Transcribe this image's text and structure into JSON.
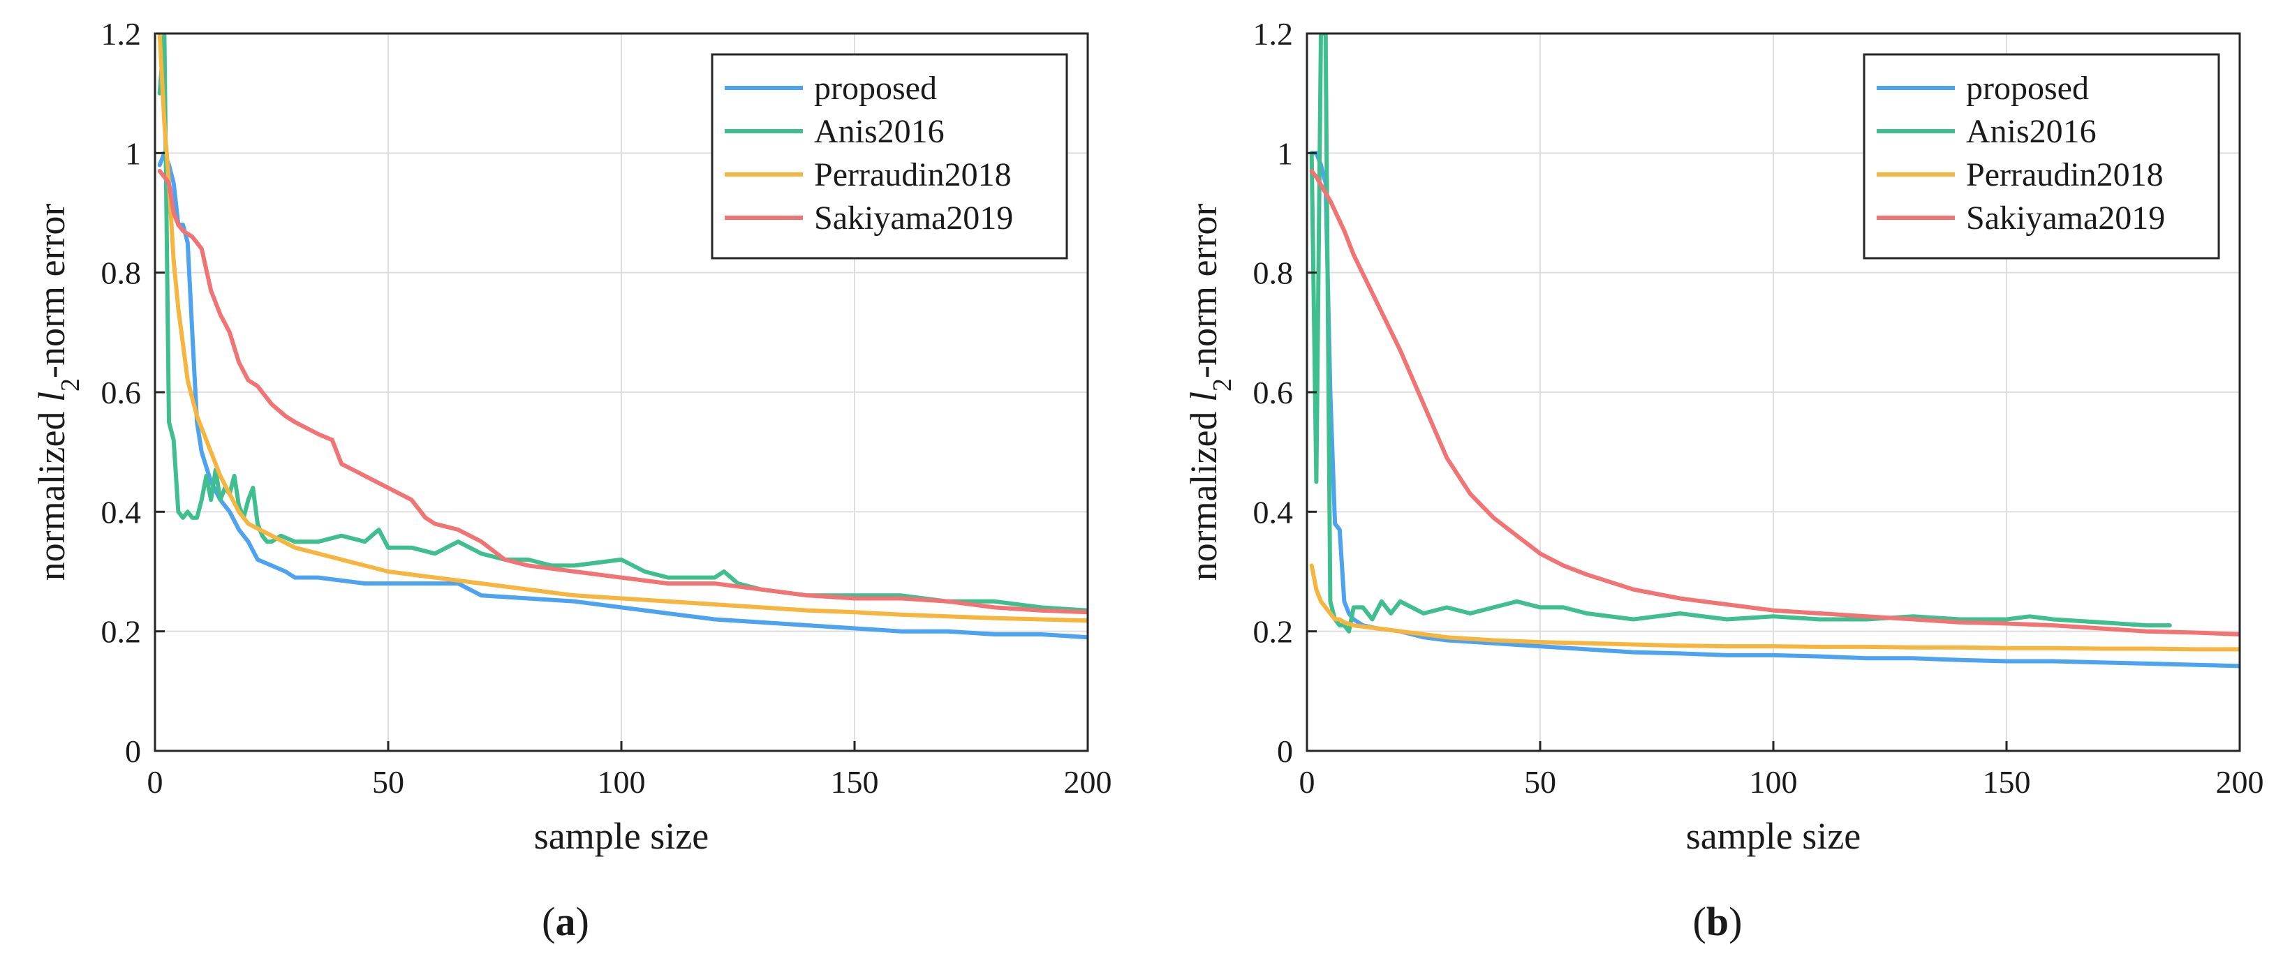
{
  "figure": {
    "colors": {
      "proposed": "#4da3f0",
      "Anis2016": "#3fbf8f",
      "Perraudin2018": "#f5b53f",
      "Sakiyama2019": "#f27373"
    }
  },
  "chart_data": [
    {
      "type": "line",
      "panel": "(a)",
      "panel_letter": "a",
      "xlabel": "sample size",
      "ylabel_prefix": "normalized ",
      "ylabel_var": "l",
      "ylabel_sub": "2",
      "ylabel_suffix": "-norm error",
      "xlim": [
        0,
        200
      ],
      "ylim": [
        0,
        1.2
      ],
      "xticks": [
        0,
        50,
        100,
        150,
        200
      ],
      "yticks": [
        0,
        0.2,
        0.4,
        0.6,
        0.8,
        1,
        1.2
      ],
      "ytick_labels": [
        "0",
        "0.2",
        "0.4",
        "0.6",
        "0.8",
        "1",
        "1.2"
      ],
      "grid": true,
      "legend_position": "top-right",
      "series": [
        {
          "name": "proposed",
          "x": [
            1,
            2,
            3,
            4,
            5,
            6,
            7,
            8,
            9,
            10,
            12,
            14,
            16,
            18,
            20,
            22,
            25,
            28,
            30,
            35,
            40,
            45,
            50,
            55,
            60,
            65,
            70,
            80,
            90,
            100,
            110,
            120,
            130,
            140,
            150,
            160,
            170,
            180,
            190,
            200
          ],
          "y": [
            0.98,
            1.0,
            0.98,
            0.95,
            0.88,
            0.88,
            0.85,
            0.7,
            0.55,
            0.5,
            0.45,
            0.42,
            0.4,
            0.37,
            0.35,
            0.32,
            0.31,
            0.3,
            0.29,
            0.29,
            0.285,
            0.28,
            0.28,
            0.28,
            0.28,
            0.28,
            0.26,
            0.255,
            0.25,
            0.24,
            0.23,
            0.22,
            0.215,
            0.21,
            0.205,
            0.2,
            0.2,
            0.195,
            0.195,
            0.19
          ]
        },
        {
          "name": "Anis2016",
          "x": [
            1,
            2,
            3,
            4,
            5,
            6,
            7,
            8,
            9,
            10,
            11,
            12,
            13,
            14,
            15,
            16,
            17,
            18,
            19,
            20,
            21,
            22,
            23,
            24,
            25,
            27,
            30,
            35,
            40,
            45,
            48,
            50,
            55,
            60,
            65,
            70,
            75,
            80,
            85,
            90,
            95,
            100,
            105,
            110,
            115,
            120,
            122,
            125,
            130,
            140,
            150,
            160,
            170,
            180,
            190,
            200
          ],
          "y": [
            1.1,
            1.2,
            0.55,
            0.52,
            0.4,
            0.39,
            0.4,
            0.39,
            0.39,
            0.42,
            0.46,
            0.42,
            0.47,
            0.42,
            0.44,
            0.43,
            0.46,
            0.41,
            0.39,
            0.42,
            0.44,
            0.38,
            0.36,
            0.35,
            0.35,
            0.36,
            0.35,
            0.35,
            0.36,
            0.35,
            0.37,
            0.34,
            0.34,
            0.33,
            0.35,
            0.33,
            0.32,
            0.32,
            0.31,
            0.31,
            0.315,
            0.32,
            0.3,
            0.29,
            0.29,
            0.29,
            0.3,
            0.28,
            0.27,
            0.26,
            0.26,
            0.26,
            0.25,
            0.25,
            0.24,
            0.235
          ]
        },
        {
          "name": "Perraudin2018",
          "x": [
            1,
            2,
            3,
            4,
            5,
            6,
            7,
            8,
            9,
            10,
            12,
            14,
            16,
            18,
            20,
            25,
            30,
            40,
            50,
            60,
            70,
            80,
            90,
            100,
            110,
            120,
            130,
            140,
            150,
            160,
            170,
            180,
            190,
            200
          ],
          "y": [
            1.2,
            1.05,
            0.95,
            0.82,
            0.74,
            0.68,
            0.62,
            0.59,
            0.56,
            0.54,
            0.5,
            0.46,
            0.43,
            0.4,
            0.38,
            0.36,
            0.34,
            0.32,
            0.3,
            0.29,
            0.28,
            0.27,
            0.26,
            0.255,
            0.25,
            0.245,
            0.24,
            0.235,
            0.232,
            0.228,
            0.225,
            0.222,
            0.22,
            0.218
          ]
        },
        {
          "name": "Sakiyama2019",
          "x": [
            1,
            2,
            3,
            4,
            5,
            6,
            8,
            10,
            12,
            14,
            16,
            18,
            20,
            22,
            25,
            28,
            30,
            35,
            38,
            40,
            45,
            50,
            55,
            58,
            60,
            65,
            70,
            75,
            80,
            90,
            100,
            110,
            120,
            130,
            140,
            150,
            160,
            170,
            180,
            190,
            200
          ],
          "y": [
            0.97,
            0.96,
            0.95,
            0.9,
            0.88,
            0.87,
            0.86,
            0.84,
            0.77,
            0.73,
            0.7,
            0.65,
            0.62,
            0.61,
            0.58,
            0.56,
            0.55,
            0.53,
            0.52,
            0.48,
            0.46,
            0.44,
            0.42,
            0.39,
            0.38,
            0.37,
            0.35,
            0.32,
            0.31,
            0.3,
            0.29,
            0.28,
            0.28,
            0.27,
            0.26,
            0.255,
            0.255,
            0.25,
            0.24,
            0.235,
            0.232
          ]
        }
      ]
    },
    {
      "type": "line",
      "panel": "(b)",
      "panel_letter": "b",
      "xlabel": "sample size",
      "ylabel_prefix": "normalized ",
      "ylabel_var": "l",
      "ylabel_sub": "2",
      "ylabel_suffix": "-norm error",
      "xlim": [
        0,
        200
      ],
      "ylim": [
        0,
        1.2
      ],
      "xticks": [
        0,
        50,
        100,
        150,
        200
      ],
      "yticks": [
        0,
        0.2,
        0.4,
        0.6,
        0.8,
        1,
        1.2
      ],
      "ytick_labels": [
        "0",
        "0.2",
        "0.4",
        "0.6",
        "0.8",
        "1",
        "1.2"
      ],
      "grid": true,
      "legend_position": "top-right",
      "series": [
        {
          "name": "proposed",
          "x": [
            1,
            2,
            3,
            4,
            5,
            6,
            7,
            8,
            9,
            10,
            12,
            15,
            20,
            25,
            30,
            40,
            50,
            60,
            70,
            80,
            90,
            100,
            110,
            120,
            130,
            140,
            150,
            160,
            170,
            180,
            190,
            200
          ],
          "y": [
            1.0,
            1.0,
            0.98,
            0.95,
            0.6,
            0.38,
            0.37,
            0.25,
            0.23,
            0.22,
            0.21,
            0.205,
            0.2,
            0.19,
            0.185,
            0.18,
            0.175,
            0.17,
            0.165,
            0.163,
            0.16,
            0.16,
            0.158,
            0.155,
            0.155,
            0.152,
            0.15,
            0.15,
            0.148,
            0.146,
            0.144,
            0.142
          ]
        },
        {
          "name": "Anis2016",
          "x": [
            1,
            2,
            3,
            4,
            5,
            6,
            7,
            8,
            9,
            10,
            12,
            14,
            16,
            18,
            20,
            25,
            30,
            35,
            40,
            45,
            50,
            55,
            60,
            70,
            80,
            90,
            100,
            110,
            120,
            130,
            140,
            150,
            155,
            160,
            170,
            180,
            185
          ],
          "y": [
            1.0,
            0.45,
            1.2,
            1.2,
            0.25,
            0.22,
            0.21,
            0.21,
            0.2,
            0.24,
            0.24,
            0.22,
            0.25,
            0.23,
            0.25,
            0.23,
            0.24,
            0.23,
            0.24,
            0.25,
            0.24,
            0.24,
            0.23,
            0.22,
            0.23,
            0.22,
            0.225,
            0.22,
            0.22,
            0.225,
            0.22,
            0.22,
            0.225,
            0.22,
            0.215,
            0.21,
            0.21
          ]
        },
        {
          "name": "Perraudin2018",
          "x": [
            1,
            2,
            3,
            4,
            5,
            6,
            7,
            8,
            10,
            15,
            20,
            30,
            40,
            50,
            60,
            70,
            80,
            90,
            100,
            110,
            120,
            130,
            140,
            150,
            160,
            170,
            180,
            190,
            200
          ],
          "y": [
            0.31,
            0.27,
            0.25,
            0.24,
            0.23,
            0.22,
            0.22,
            0.215,
            0.21,
            0.205,
            0.2,
            0.19,
            0.185,
            0.182,
            0.18,
            0.178,
            0.176,
            0.175,
            0.175,
            0.174,
            0.174,
            0.173,
            0.173,
            0.172,
            0.172,
            0.171,
            0.171,
            0.17,
            0.17
          ]
        },
        {
          "name": "Sakiyama2019",
          "x": [
            1,
            2,
            5,
            8,
            10,
            15,
            20,
            25,
            30,
            35,
            40,
            45,
            50,
            55,
            60,
            70,
            80,
            90,
            100,
            110,
            120,
            130,
            140,
            150,
            160,
            170,
            180,
            190,
            200
          ],
          "y": [
            0.97,
            0.96,
            0.92,
            0.87,
            0.83,
            0.75,
            0.67,
            0.58,
            0.49,
            0.43,
            0.39,
            0.36,
            0.33,
            0.31,
            0.295,
            0.27,
            0.255,
            0.245,
            0.235,
            0.23,
            0.225,
            0.22,
            0.215,
            0.213,
            0.21,
            0.205,
            0.2,
            0.198,
            0.195
          ]
        }
      ]
    }
  ]
}
